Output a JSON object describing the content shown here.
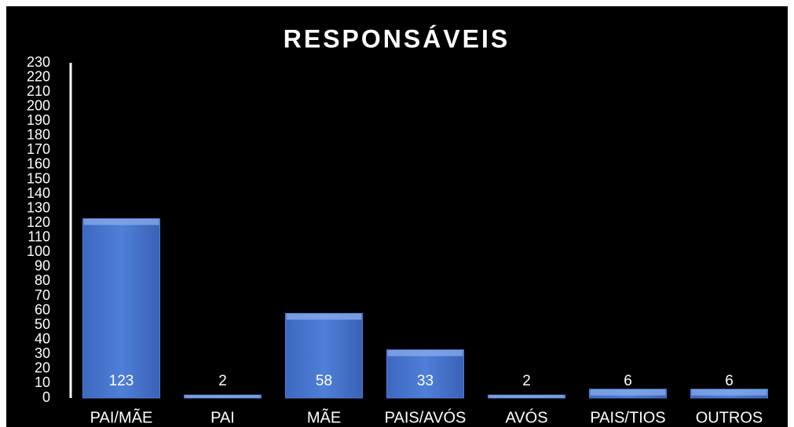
{
  "chart_data": {
    "type": "bar",
    "title": "RESPONSÁVEIS",
    "categories": [
      "PAI/MÃE",
      "PAI",
      "MÃE",
      "PAIS/AVÓS",
      "AVÓS",
      "PAIS/TIOS",
      "OUTROS"
    ],
    "values": [
      123,
      2,
      58,
      33,
      2,
      6,
      6
    ],
    "color": "#4f7fd8",
    "ylim": [
      0,
      230
    ],
    "yticks": [
      0,
      10,
      20,
      30,
      40,
      50,
      60,
      70,
      80,
      90,
      100,
      110,
      120,
      130,
      140,
      150,
      160,
      170,
      180,
      190,
      200,
      210,
      220,
      230
    ],
    "grid": false
  }
}
